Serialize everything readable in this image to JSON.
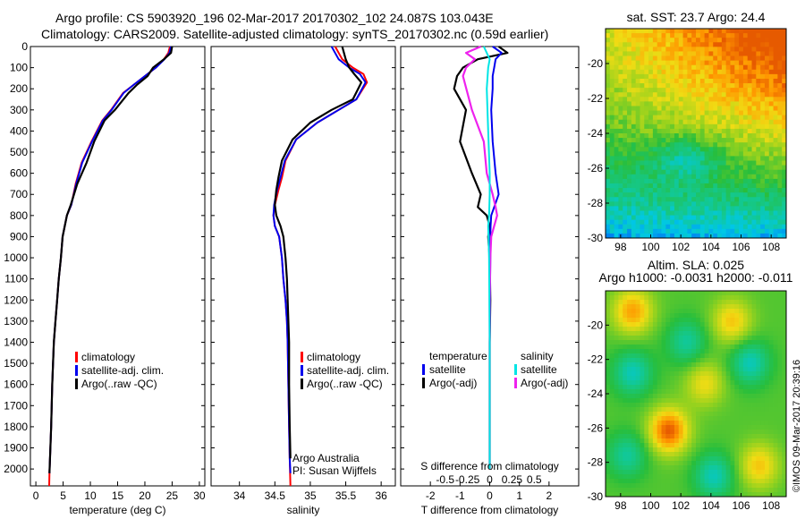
{
  "header": {
    "line1": "Argo profile: CS 5903920_196 02-Mar-2017 20170302_102 24.087S 103.043E",
    "line2": "Climatology: CARS2009. Satellite-adjusted climatology: synTS_20170302.nc (0.59d earlier)"
  },
  "colors": {
    "climatology": "#ff0000",
    "satellite": "#0000ee",
    "argo": "#000000",
    "satellite_s": "#00e5e5",
    "argo_s": "#ee22ee"
  },
  "chart_data": [
    {
      "id": "temperature",
      "type": "line",
      "xlabel": "temperature (deg C)",
      "xlim": [
        -1,
        31
      ],
      "xticks": [
        "0",
        "5",
        "10",
        "15",
        "20",
        "25",
        "30"
      ],
      "xtick_values": [
        0,
        5,
        10,
        15,
        20,
        25,
        30
      ],
      "ylim": [
        0,
        2080
      ],
      "yticks": [
        "0",
        "100",
        "200",
        "300",
        "400",
        "500",
        "600",
        "700",
        "800",
        "900",
        "1000",
        "1100",
        "1200",
        "1300",
        "1400",
        "1500",
        "1600",
        "1700",
        "1800",
        "1900",
        "2000"
      ],
      "ytick_values": [
        0,
        100,
        200,
        300,
        400,
        500,
        600,
        700,
        800,
        900,
        1000,
        1100,
        1200,
        1300,
        1400,
        1500,
        1600,
        1700,
        1800,
        1900,
        2000
      ],
      "legend": [
        "climatology",
        "satellite-adj. clim.",
        "Argo(..raw -QC)"
      ],
      "series": [
        {
          "key": "climatology",
          "x": [
            24.6,
            24.3,
            23.5,
            22.0,
            20.0,
            18.0,
            16.0,
            13.8,
            12.2,
            10.2,
            8.4,
            7.3,
            6.5,
            5.7,
            5.3,
            4.9,
            4.6,
            4.2,
            3.9,
            3.6,
            3.3,
            3.0,
            2.8,
            2.6,
            2.5,
            2.45
          ],
          "y": [
            0,
            30,
            60,
            100,
            140,
            180,
            220,
            300,
            350,
            450,
            550,
            650,
            750,
            800,
            850,
            900,
            1000,
            1100,
            1200,
            1300,
            1400,
            1600,
            1800,
            1950,
            2020,
            2080
          ]
        },
        {
          "key": "satellite",
          "x": [
            24.8,
            24.5,
            23.6,
            22.0,
            20.0,
            18.0,
            16.1,
            13.9,
            12.3,
            10.3,
            8.5,
            7.4,
            6.5,
            5.7,
            5.3,
            4.9,
            4.6,
            4.2,
            3.9,
            3.6,
            3.3,
            3.0,
            2.8,
            2.6,
            2.5
          ],
          "y": [
            0,
            30,
            60,
            100,
            140,
            180,
            220,
            300,
            350,
            450,
            550,
            650,
            750,
            800,
            850,
            900,
            1000,
            1100,
            1200,
            1300,
            1400,
            1600,
            1800,
            1950,
            2020
          ]
        },
        {
          "key": "argo",
          "x": [
            25.0,
            24.8,
            23.5,
            21.5,
            20.5,
            18.6,
            17.0,
            14.5,
            12.6,
            10.7,
            9.3,
            7.6,
            6.4,
            5.7,
            5.3,
            4.9,
            4.6,
            4.2,
            3.9,
            3.6,
            3.3,
            3.0,
            2.8,
            2.6,
            2.5
          ],
          "y": [
            0,
            30,
            60,
            100,
            140,
            180,
            220,
            300,
            350,
            450,
            550,
            650,
            750,
            800,
            850,
            900,
            1000,
            1100,
            1200,
            1300,
            1400,
            1600,
            1800,
            1950,
            2020
          ]
        }
      ]
    },
    {
      "id": "salinity",
      "type": "line",
      "xlabel": "salinity",
      "xlim": [
        33.6,
        36.2
      ],
      "xticks": [
        "34",
        "34.5",
        "35",
        "35.5",
        "36"
      ],
      "xtick_values": [
        34,
        34.5,
        35,
        35.5,
        36
      ],
      "ylim": [
        0,
        2080
      ],
      "legend": [
        "climatology",
        "satellite-adj. clim.",
        "Argo(..raw -QC)"
      ],
      "note_lines": [
        "Argo Australia",
        "PI: Susan Wijffels"
      ],
      "series": [
        {
          "key": "climatology",
          "x": [
            35.35,
            35.45,
            35.6,
            35.75,
            35.8,
            35.65,
            35.4,
            35.1,
            34.8,
            34.65,
            34.6,
            34.55,
            34.5,
            34.48,
            34.5,
            34.56,
            34.6,
            34.62,
            34.65,
            34.67,
            34.68,
            34.69,
            34.7,
            34.71,
            34.72
          ],
          "y": [
            0,
            60,
            100,
            130,
            170,
            250,
            300,
            360,
            440,
            540,
            620,
            680,
            750,
            800,
            850,
            900,
            1000,
            1100,
            1200,
            1300,
            1400,
            1600,
            1800,
            1950,
            2080
          ]
        },
        {
          "key": "satellite",
          "x": [
            35.3,
            35.4,
            35.55,
            35.7,
            35.78,
            35.65,
            35.4,
            35.1,
            34.8,
            34.64,
            34.58,
            34.53,
            34.49,
            34.48,
            34.5,
            34.56,
            34.6,
            34.62,
            34.65,
            34.67,
            34.68,
            34.69,
            34.7,
            34.71,
            34.72
          ],
          "y": [
            0,
            60,
            100,
            130,
            170,
            250,
            300,
            360,
            440,
            540,
            620,
            680,
            750,
            800,
            850,
            900,
            1000,
            1100,
            1200,
            1300,
            1400,
            1600,
            1800,
            1950,
            2020
          ]
        },
        {
          "key": "argo",
          "x": [
            35.45,
            35.5,
            35.55,
            35.62,
            35.72,
            35.6,
            35.3,
            35.0,
            34.75,
            34.6,
            34.55,
            34.52,
            34.5,
            34.52,
            34.58,
            34.62,
            34.65,
            34.67,
            34.68,
            34.69,
            34.7,
            34.7,
            34.71,
            34.72
          ],
          "y": [
            0,
            60,
            100,
            130,
            170,
            250,
            300,
            360,
            440,
            540,
            620,
            680,
            750,
            800,
            850,
            900,
            1000,
            1100,
            1200,
            1300,
            1400,
            1600,
            1800,
            1950
          ]
        }
      ]
    },
    {
      "id": "difference",
      "type": "line",
      "xlabel": "T difference from climatology",
      "xlabel_top": "S difference from climatology",
      "xlim": [
        -3,
        3
      ],
      "xticks": [
        "-2",
        "-1",
        "0",
        "1",
        "2"
      ],
      "xtick_values": [
        -2,
        -1,
        0,
        1,
        2
      ],
      "xticks_top": [
        "-0.5",
        "-0.25",
        "0",
        "0.25",
        "0.5"
      ],
      "xtick_top_values": [
        -1.5,
        -0.75,
        0,
        0.75,
        1.5
      ],
      "ylim": [
        0,
        2080
      ],
      "legend_t_title": "temperature",
      "legend_s_title": "salinity",
      "legend_t": [
        "satellite",
        "Argo(-adj)"
      ],
      "legend_s": [
        "satellite",
        "Argo(-adj)"
      ],
      "series": [
        {
          "key": "argo",
          "x": [
            0.3,
            0.6,
            -0.4,
            -0.9,
            -1.1,
            -1.2,
            -0.8,
            -1.0,
            -0.6,
            -0.3,
            -0.4,
            -0.1,
            0.0,
            -0.05,
            0.0,
            0.02,
            0.0,
            0.0,
            0.0,
            0.0
          ],
          "y": [
            0,
            30,
            60,
            100,
            140,
            200,
            300,
            450,
            600,
            700,
            760,
            800,
            850,
            900,
            1000,
            1200,
            1400,
            1600,
            1800,
            2000
          ]
        },
        {
          "key": "satellite",
          "x": [
            0.1,
            0.4,
            0.2,
            0.15,
            0.1,
            0.1,
            0.05,
            0.1,
            0.2,
            0.3,
            0.15,
            0.05,
            0.03,
            0.02,
            0.02,
            0.01,
            0.0,
            0.0,
            0.0
          ],
          "y": [
            0,
            30,
            60,
            100,
            140,
            200,
            300,
            450,
            600,
            700,
            760,
            800,
            850,
            900,
            1000,
            1200,
            1400,
            1600,
            1800
          ]
        },
        {
          "key": "argo_s",
          "x": [
            -0.3,
            -0.8,
            -0.5,
            -0.8,
            -0.9,
            -0.6,
            -0.2,
            -0.1,
            0.1,
            0.2,
            0.25,
            0.15,
            0.05,
            0.02,
            0.0,
            0.0,
            0.0
          ],
          "y": [
            0,
            30,
            60,
            100,
            140,
            300,
            450,
            600,
            700,
            760,
            800,
            850,
            900,
            1000,
            1200,
            1600,
            2000
          ]
        },
        {
          "key": "satellite_s",
          "x": [
            -0.2,
            -0.1,
            0.0,
            -0.05,
            -0.1,
            -0.05,
            0.0,
            0.0,
            -0.02,
            -0.05,
            -0.04,
            -0.02,
            0.0,
            0.0,
            0.0
          ],
          "y": [
            0,
            30,
            60,
            100,
            200,
            400,
            600,
            700,
            800,
            850,
            900,
            1000,
            1400,
            1800,
            2000
          ]
        }
      ]
    },
    {
      "id": "sst_map",
      "type": "heatmap",
      "title": "sat. SST: 23.7 Argo: 24.4",
      "xlim": [
        97,
        109
      ],
      "ylim": [
        -30,
        -18
      ],
      "xticks": [
        "98",
        "100",
        "102",
        "104",
        "106",
        "108"
      ],
      "xtick_values": [
        98,
        100,
        102,
        104,
        106,
        108
      ],
      "yticks": [
        "-20",
        "-22",
        "-24",
        "-26",
        "-28",
        "-30"
      ],
      "ytick_values": [
        -20,
        -22,
        -24,
        -26,
        -28,
        -30
      ]
    },
    {
      "id": "sla_map",
      "type": "heatmap",
      "title_lines": [
        "Altim. SLA: 0.025",
        "Argo h1000: -0.0031 h2000: -0.011"
      ],
      "xlim": [
        97,
        109
      ],
      "ylim": [
        -30,
        -18
      ],
      "xticks": [
        "98",
        "100",
        "102",
        "104",
        "106",
        "108"
      ],
      "xtick_values": [
        98,
        100,
        102,
        104,
        106,
        108
      ],
      "yticks": [
        "-20",
        "-22",
        "-24",
        "-26",
        "-28",
        "-30"
      ],
      "ytick_values": [
        -20,
        -22,
        -24,
        -26,
        -28,
        -30
      ]
    }
  ],
  "stamp": "©IMOS 09-Mar-2017 20:39:16"
}
